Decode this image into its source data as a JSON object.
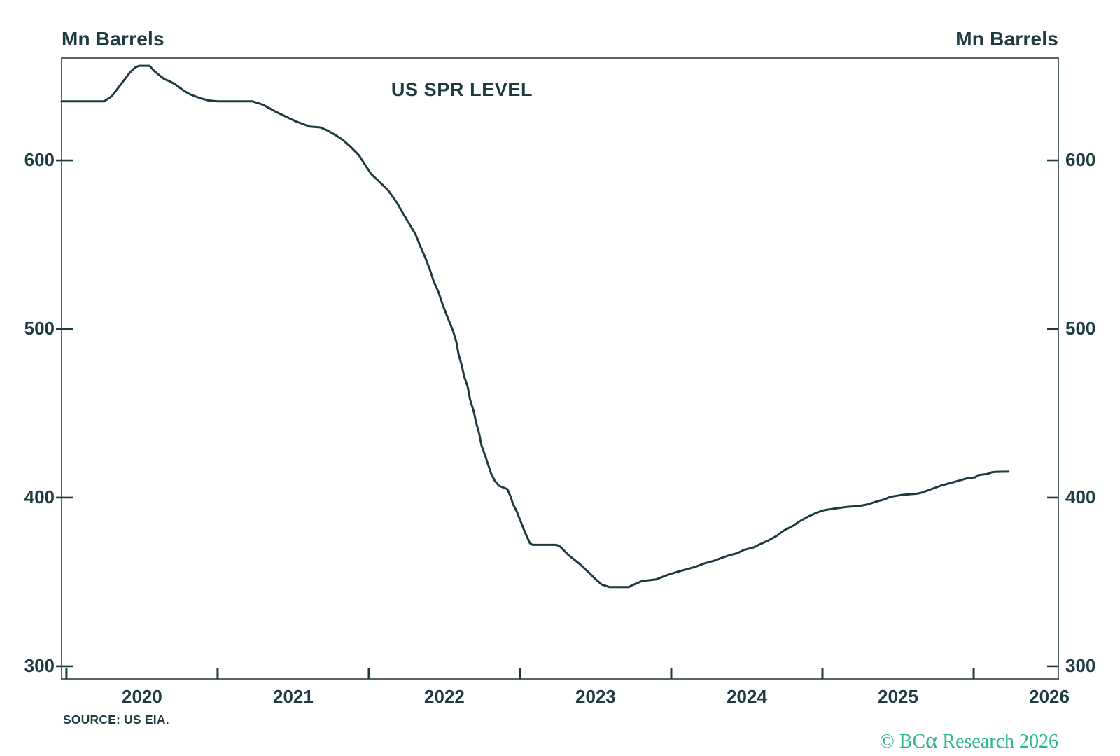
{
  "header": {
    "left_axis_unit": "Mn Barrels",
    "right_axis_unit": "Mn Barrels"
  },
  "chart": {
    "title": "US SPR LEVEL"
  },
  "footer": {
    "source": "SOURCE: US EIA.",
    "copyright_prefix": "© BC",
    "copyright_alpha": "α",
    "copyright_suffix": " Research 2026"
  },
  "colors": {
    "text": "#1e3b41",
    "line": "#1d3a40",
    "frame": "#566569",
    "tick": "#1e3b41",
    "copyright": "#2bb68c",
    "background": "#ffffff"
  },
  "chart_data": {
    "type": "line",
    "title": "US SPR LEVEL",
    "xlabel": "",
    "ylabel": "Mn Barrels",
    "grid": false,
    "legend": "none",
    "x_axis": {
      "range": [
        2019.968,
        2026.56
      ],
      "tick_years": [
        2020,
        2021,
        2022,
        2023,
        2024,
        2025,
        2026
      ],
      "labels": [
        "2020",
        "2021",
        "2022",
        "2023",
        "2024",
        "2025",
        "2026"
      ]
    },
    "y_axis": {
      "range": [
        292.5,
        660.6
      ],
      "ticks": [
        300,
        400,
        500,
        600
      ],
      "sides": "both"
    },
    "series": [
      {
        "name": "US SPR Level (Mn Barrels)",
        "points": [
          [
            2019.968,
            635
          ],
          [
            2020.25,
            635
          ],
          [
            2020.3,
            638
          ],
          [
            2020.36,
            645
          ],
          [
            2020.42,
            652
          ],
          [
            2020.455,
            655
          ],
          [
            2020.48,
            656
          ],
          [
            2020.55,
            656
          ],
          [
            2020.58,
            653
          ],
          [
            2020.62,
            650
          ],
          [
            2020.65,
            648
          ],
          [
            2020.68,
            647
          ],
          [
            2020.72,
            645
          ],
          [
            2020.78,
            641
          ],
          [
            2020.82,
            639
          ],
          [
            2020.88,
            637
          ],
          [
            2020.94,
            635.5
          ],
          [
            2021.0,
            635
          ],
          [
            2021.23,
            635
          ],
          [
            2021.3,
            633
          ],
          [
            2021.38,
            629
          ],
          [
            2021.45,
            626
          ],
          [
            2021.52,
            623
          ],
          [
            2021.58,
            621
          ],
          [
            2021.61,
            620
          ],
          [
            2021.68,
            619.5
          ],
          [
            2021.72,
            618
          ],
          [
            2021.78,
            615
          ],
          [
            2021.83,
            612
          ],
          [
            2021.88,
            608
          ],
          [
            2021.935,
            603
          ],
          [
            2021.97,
            598
          ],
          [
            2022.0,
            594
          ],
          [
            2022.014,
            592
          ],
          [
            2022.074,
            587
          ],
          [
            2022.13,
            582
          ],
          [
            2022.185,
            575
          ],
          [
            2022.23,
            568
          ],
          [
            2022.27,
            562
          ],
          [
            2022.31,
            556
          ],
          [
            2022.34,
            549
          ],
          [
            2022.37,
            543
          ],
          [
            2022.4,
            536
          ],
          [
            2022.43,
            528
          ],
          [
            2022.46,
            522
          ],
          [
            2022.49,
            514
          ],
          [
            2022.52,
            507
          ],
          [
            2022.556,
            499
          ],
          [
            2022.58,
            492
          ],
          [
            2022.593,
            485
          ],
          [
            2022.616,
            478
          ],
          [
            2022.63,
            472
          ],
          [
            2022.653,
            466
          ],
          [
            2022.67,
            458
          ],
          [
            2022.694,
            451
          ],
          [
            2022.708,
            445
          ],
          [
            2022.73,
            438
          ],
          [
            2022.745,
            431
          ],
          [
            2022.769,
            425
          ],
          [
            2022.787,
            420
          ],
          [
            2022.81,
            414
          ],
          [
            2022.833,
            410
          ],
          [
            2022.861,
            407
          ],
          [
            2022.917,
            405
          ],
          [
            2022.94,
            400
          ],
          [
            2022.954,
            396
          ],
          [
            2022.977,
            392
          ],
          [
            2022.995,
            388
          ],
          [
            2023.03,
            380
          ],
          [
            2023.065,
            373
          ],
          [
            2023.083,
            372
          ],
          [
            2023.24,
            372
          ],
          [
            2023.265,
            371
          ],
          [
            2023.32,
            366
          ],
          [
            2023.39,
            361
          ],
          [
            2023.45,
            356
          ],
          [
            2023.495,
            352
          ],
          [
            2023.54,
            348.5
          ],
          [
            2023.59,
            347
          ],
          [
            2023.72,
            347
          ],
          [
            2023.74,
            348
          ],
          [
            2023.78,
            349.5
          ],
          [
            2023.805,
            350.5
          ],
          [
            2023.9,
            351.5
          ],
          [
            2023.97,
            354
          ],
          [
            2024.04,
            356
          ],
          [
            2024.1,
            357.5
          ],
          [
            2024.16,
            359
          ],
          [
            2024.22,
            361
          ],
          [
            2024.28,
            362.5
          ],
          [
            2024.34,
            364.5
          ],
          [
            2024.39,
            366
          ],
          [
            2024.435,
            367
          ],
          [
            2024.48,
            369
          ],
          [
            2024.545,
            370.5
          ],
          [
            2024.59,
            372.5
          ],
          [
            2024.64,
            374.5
          ],
          [
            2024.7,
            377.5
          ],
          [
            2024.745,
            380.5
          ],
          [
            2024.81,
            383.5
          ],
          [
            2024.84,
            385.5
          ],
          [
            2024.9,
            388.5
          ],
          [
            2024.96,
            391
          ],
          [
            2025.01,
            392.5
          ],
          [
            2025.08,
            393.5
          ],
          [
            2025.16,
            394.5
          ],
          [
            2025.24,
            395
          ],
          [
            2025.3,
            396
          ],
          [
            2025.35,
            397.5
          ],
          [
            2025.41,
            399
          ],
          [
            2025.45,
            400.5
          ],
          [
            2025.52,
            401.5
          ],
          [
            2025.58,
            402
          ],
          [
            2025.625,
            402.3
          ],
          [
            2025.66,
            403
          ],
          [
            2025.72,
            405
          ],
          [
            2025.78,
            407
          ],
          [
            2025.84,
            408.5
          ],
          [
            2025.9,
            410
          ],
          [
            2025.96,
            411.5
          ],
          [
            2026.01,
            412
          ],
          [
            2026.03,
            413.3
          ],
          [
            2026.09,
            414
          ],
          [
            2026.12,
            415
          ],
          [
            2026.15,
            415.3
          ],
          [
            2026.23,
            415.4
          ]
        ]
      }
    ]
  }
}
